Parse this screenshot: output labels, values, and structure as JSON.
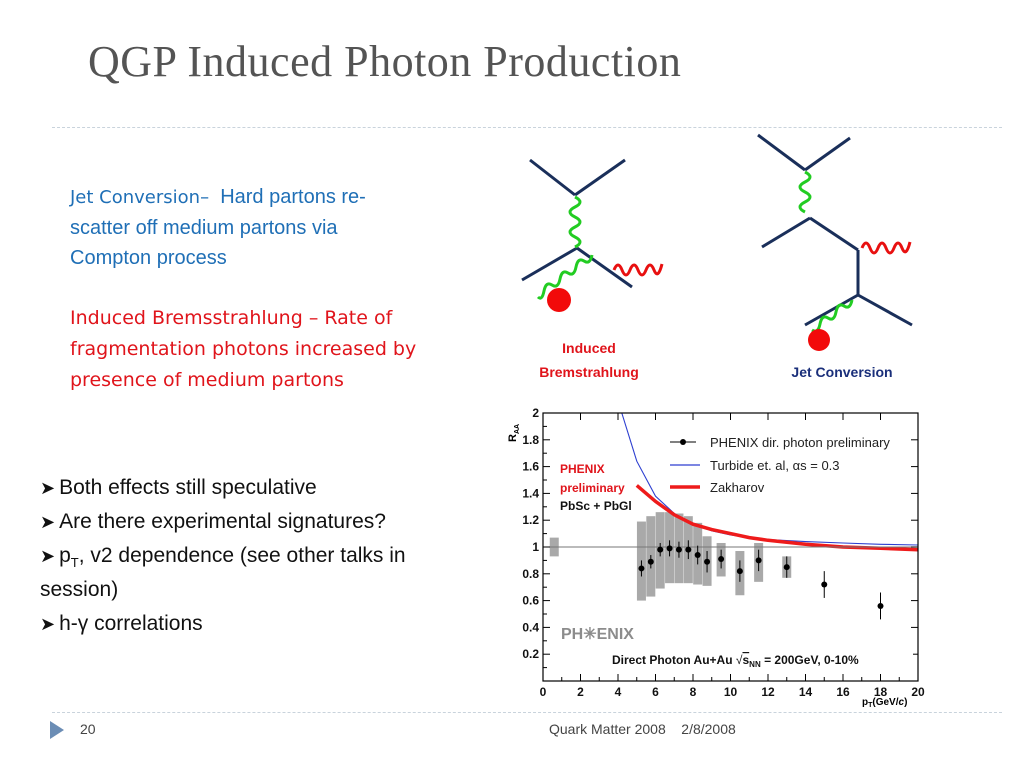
{
  "slide": {
    "title": "QGP Induced Photon Production",
    "jet_conv_head": "Jet Conversion–",
    "jet_conv_body_1": "Hard partons re-",
    "jet_conv_body_2": "scatter off medium partons  via",
    "jet_conv_body_3": "Compton process",
    "brems_1": "Induced Bremsstrahlung – Rate of",
    "brems_2": "fragmentation photons increased by",
    "brems_3": "presence of medium partons",
    "bullets": [
      "Both effects still speculative",
      "Are there experimental signatures?",
      "p",
      "h-γ correlations"
    ],
    "bullet3_sub": "T",
    "bullet3_rest": ", v2 dependence (see other talks in",
    "bullet3_cont": "session)",
    "slide_number": "20",
    "footer": "Quark Matter 2008    2/8/2008"
  },
  "diagrams": {
    "left_label_1": "Induced",
    "left_label_2": "Bremstrahlung",
    "right_label": "Jet Conversion",
    "line_color": "#1a2f5a",
    "gluon_color": "#22cc22",
    "photon_color": "#e81010",
    "dot_color": "#f20a0a"
  },
  "chart_data": {
    "type": "scatter",
    "title": "",
    "xlabel": "p_T (GeV/c)",
    "ylabel": "R_AA",
    "xlim": [
      0,
      20
    ],
    "ylim": [
      0,
      2
    ],
    "xticks": [
      0,
      2,
      4,
      6,
      8,
      10,
      12,
      14,
      16,
      18,
      20
    ],
    "yticks": [
      0.2,
      0.4,
      0.6,
      0.8,
      1,
      1.2,
      1.4,
      1.6,
      1.8,
      2
    ],
    "x_tick_labels": [
      "0",
      "2",
      "4",
      "6",
      "8",
      "10",
      "12",
      "14",
      "16",
      "18",
      "20"
    ],
    "y_tick_labels": [
      "0.2",
      "0.4",
      "0.6",
      "0.8",
      "1",
      "1.2",
      "1.4",
      "1.6",
      "1.8",
      "2"
    ],
    "reference_line": 1,
    "annotation_lines": [
      "PHENIX",
      "preliminary",
      "PbSc + PbGl"
    ],
    "logo_text": "PH✳ENIX",
    "caption_prefix": "Direct Photon Au+Au ",
    "caption_sqrt": "s",
    "caption_sub": "NN",
    "caption_suffix": " = 200GeV, 0-10%",
    "legend_position": "top-right",
    "legend": [
      {
        "label": "PHENIX dir. photon preliminary",
        "style": "marker"
      },
      {
        "label": "Turbide et. al, αs = 0.3",
        "style": "line",
        "color": "#2d3fd0"
      },
      {
        "label": "Zakharov",
        "style": "line",
        "color": "#ee1b1b"
      }
    ],
    "points": [
      {
        "x": 5.25,
        "y": 0.84,
        "err": 0.06
      },
      {
        "x": 5.75,
        "y": 0.89,
        "err": 0.05
      },
      {
        "x": 6.25,
        "y": 0.98,
        "err": 0.05
      },
      {
        "x": 6.75,
        "y": 0.99,
        "err": 0.06
      },
      {
        "x": 7.25,
        "y": 0.98,
        "err": 0.06
      },
      {
        "x": 7.75,
        "y": 0.98,
        "err": 0.07
      },
      {
        "x": 8.25,
        "y": 0.94,
        "err": 0.07
      },
      {
        "x": 8.75,
        "y": 0.89,
        "err": 0.08
      },
      {
        "x": 9.5,
        "y": 0.91,
        "err": 0.07
      },
      {
        "x": 10.5,
        "y": 0.82,
        "err": 0.08
      },
      {
        "x": 11.5,
        "y": 0.9,
        "err": 0.08
      },
      {
        "x": 13.0,
        "y": 0.85,
        "err": 0.08
      },
      {
        "x": 15.0,
        "y": 0.72,
        "err": 0.1
      },
      {
        "x": 18.0,
        "y": 0.56,
        "err": 0.1
      }
    ],
    "sys_boxes": [
      {
        "x": 0.6,
        "y_low": 0.93,
        "y_high": 1.07
      },
      {
        "x": 5.25,
        "y_low": 0.6,
        "y_high": 1.19
      },
      {
        "x": 5.75,
        "y_low": 0.63,
        "y_high": 1.23
      },
      {
        "x": 6.25,
        "y_low": 0.69,
        "y_high": 1.26
      },
      {
        "x": 6.75,
        "y_low": 0.73,
        "y_high": 1.26
      },
      {
        "x": 7.25,
        "y_low": 0.73,
        "y_high": 1.25
      },
      {
        "x": 7.75,
        "y_low": 0.73,
        "y_high": 1.23
      },
      {
        "x": 8.25,
        "y_low": 0.72,
        "y_high": 1.18
      },
      {
        "x": 8.75,
        "y_low": 0.71,
        "y_high": 1.08
      },
      {
        "x": 9.5,
        "y_low": 0.78,
        "y_high": 1.03
      },
      {
        "x": 10.5,
        "y_low": 0.64,
        "y_high": 0.97
      },
      {
        "x": 11.5,
        "y_low": 0.74,
        "y_high": 1.03
      },
      {
        "x": 13.0,
        "y_low": 0.77,
        "y_high": 0.93
      }
    ],
    "series": [
      {
        "style": "line",
        "color": "#2d3fd0",
        "x": [
          4.2,
          5,
          6,
          7,
          8,
          9,
          10,
          11,
          12,
          14,
          16,
          18,
          20
        ],
        "y": [
          2.0,
          1.64,
          1.38,
          1.25,
          1.17,
          1.12,
          1.09,
          1.07,
          1.055,
          1.04,
          1.03,
          1.02,
          1.015
        ]
      },
      {
        "style": "line",
        "color": "#ee1b1b",
        "x": [
          5.0,
          6,
          7,
          8,
          9,
          10,
          11,
          12,
          14,
          16,
          18,
          20
        ],
        "y": [
          1.46,
          1.34,
          1.24,
          1.17,
          1.13,
          1.1,
          1.07,
          1.05,
          1.02,
          1.0,
          0.99,
          0.98
        ]
      }
    ]
  }
}
